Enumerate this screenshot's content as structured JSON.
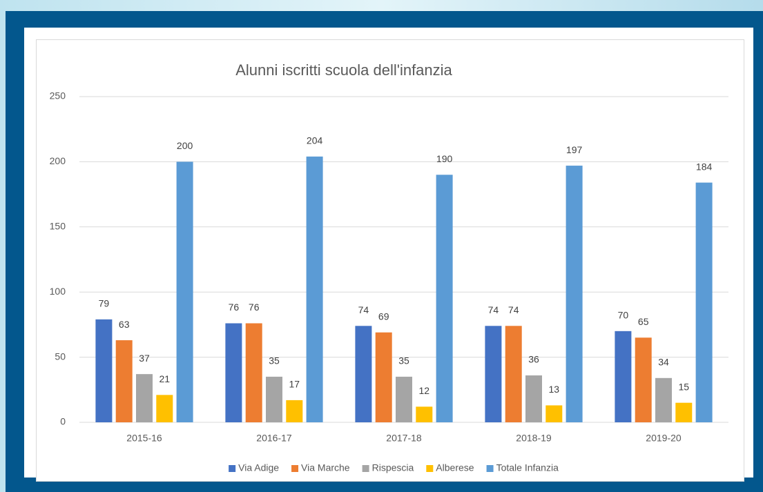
{
  "chart_data": {
    "type": "bar",
    "title": "Alunni iscritti scuola dell'infanzia",
    "categories": [
      "2015-16",
      "2016-17",
      "2017-18",
      "2018-19",
      "2019-20"
    ],
    "series": [
      {
        "name": "Via Adige",
        "color": "#4472c4",
        "values": [
          79,
          76,
          74,
          74,
          70
        ]
      },
      {
        "name": "Via Marche",
        "color": "#ed7d31",
        "values": [
          63,
          76,
          69,
          74,
          65
        ]
      },
      {
        "name": "Rispescia",
        "color": "#a5a5a5",
        "values": [
          37,
          35,
          35,
          36,
          34
        ]
      },
      {
        "name": "Alberese",
        "color": "#ffc000",
        "values": [
          21,
          17,
          12,
          13,
          15
        ]
      },
      {
        "name": "Totale Infanzia",
        "color": "#5b9bd5",
        "values": [
          200,
          204,
          190,
          197,
          184
        ]
      }
    ],
    "ylim": [
      0,
      250
    ],
    "yticks": [
      0,
      50,
      100,
      150,
      200,
      250
    ],
    "grid": true,
    "legend": "bottom"
  }
}
